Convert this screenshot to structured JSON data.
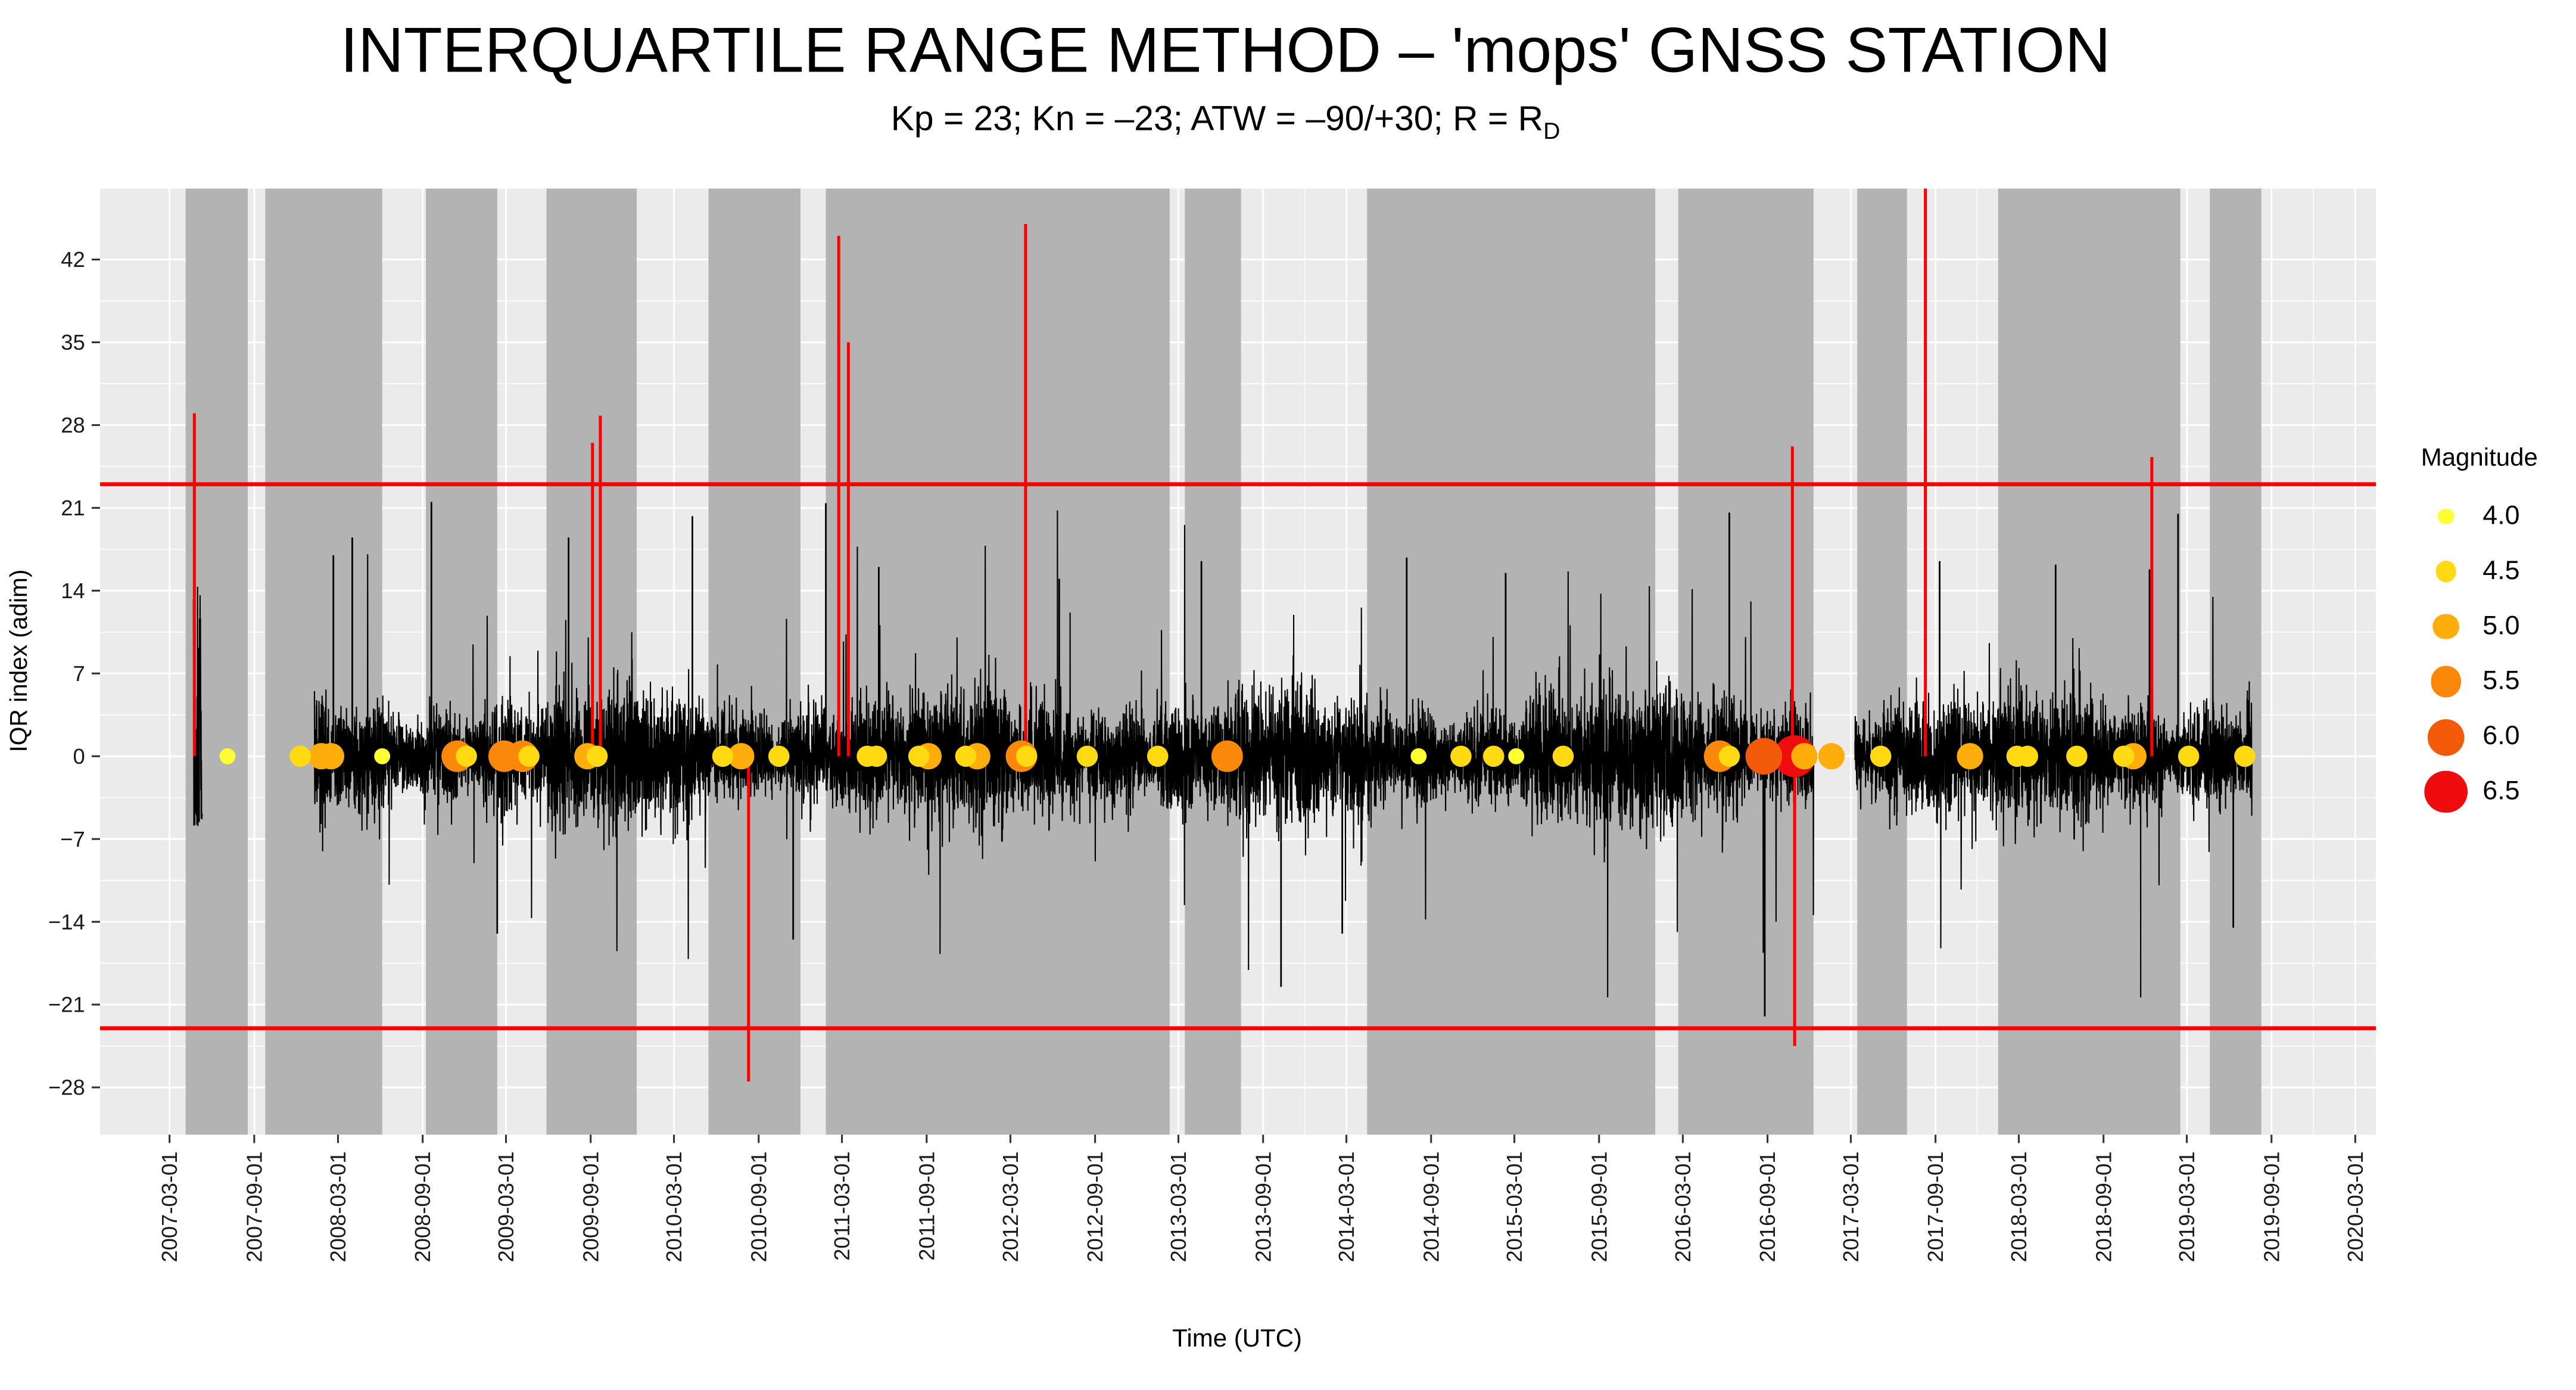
{
  "title": "INTERQUARTILE RANGE METHOD – 'mops' GNSS STATION",
  "subtitle": {
    "main": "Kp = 23; Kn = –23; ATW = –90/+30; R = R",
    "sub": "D"
  },
  "legend": {
    "title": "Magnitude"
  },
  "chart_data": {
    "type": "line",
    "title": "INTERQUARTILE RANGE METHOD – 'mops' GNSS STATION",
    "subtitle": "Kp = 23; Kn = –23; ATW = –90/+30; R = RD",
    "x_label": "Time (UTC)",
    "y_label": "IQR index (adim)",
    "x_domain": [
      "2006-10-01",
      "2020-04-15"
    ],
    "y_domain": [
      -32,
      48
    ],
    "y_ticks": [
      -28,
      -21,
      -14,
      -7,
      0,
      7,
      14,
      21,
      28,
      35,
      42
    ],
    "x_ticks": [
      "2007-03-01",
      "2007-09-01",
      "2008-03-01",
      "2008-09-01",
      "2009-03-01",
      "2009-09-01",
      "2010-03-01",
      "2010-09-01",
      "2011-03-01",
      "2011-09-01",
      "2012-03-01",
      "2012-09-01",
      "2013-03-01",
      "2013-09-01",
      "2014-03-01",
      "2014-09-01",
      "2015-03-01",
      "2015-09-01",
      "2016-03-01",
      "2016-09-01",
      "2017-03-01",
      "2017-09-01",
      "2018-03-01",
      "2018-09-01",
      "2019-03-01",
      "2019-09-01",
      "2020-03-01"
    ],
    "thresholds": {
      "upper": 23,
      "lower": -23,
      "color": "#FF0000"
    },
    "colors": {
      "panel": "#EBEBEB",
      "band": "#B3B3B3",
      "grid": "#FFFFFF",
      "series": "#000000",
      "threshold": "#FF0000"
    },
    "gap_bands": [
      {
        "start": "2007-04-05",
        "end": "2007-08-18"
      },
      {
        "start": "2007-09-25",
        "end": "2008-06-05"
      },
      {
        "start": "2008-09-08",
        "end": "2009-02-10"
      },
      {
        "start": "2009-05-28",
        "end": "2009-12-10"
      },
      {
        "start": "2010-05-15",
        "end": "2010-12-01"
      },
      {
        "start": "2011-01-25",
        "end": "2013-02-10"
      },
      {
        "start": "2013-03-15",
        "end": "2013-07-15"
      },
      {
        "start": "2014-04-15",
        "end": "2016-01-01"
      },
      {
        "start": "2016-02-20",
        "end": "2016-12-10"
      },
      {
        "start": "2017-03-15",
        "end": "2017-07-01"
      },
      {
        "start": "2018-01-15",
        "end": "2019-02-15"
      },
      {
        "start": "2019-04-20",
        "end": "2019-08-10"
      }
    ],
    "noise_segments": [
      {
        "start": "2007-04-22",
        "end": "2007-05-10",
        "sd": 5.5,
        "clip_hi": 17.5,
        "clip_lo": -6
      },
      {
        "start": "2008-01-10",
        "end": "2016-12-10",
        "sd": 2.4
      },
      {
        "start": "2017-03-10",
        "end": "2019-07-20",
        "sd": 2.4
      }
    ],
    "black_extremes": [
      {
        "date": "2008-02-20",
        "y": 17
      },
      {
        "date": "2008-04-01",
        "y": 18.5
      },
      {
        "date": "2008-09-20",
        "y": 21.5
      },
      {
        "date": "2009-02-10",
        "y": -15
      },
      {
        "date": "2009-07-15",
        "y": 18.5
      },
      {
        "date": "2010-04-10",
        "y": 20.3
      },
      {
        "date": "2010-11-15",
        "y": -15.5
      },
      {
        "date": "2011-01-25",
        "y": 21.4
      },
      {
        "date": "2011-05-20",
        "y": 16
      },
      {
        "date": "2012-06-15",
        "y": 15
      },
      {
        "date": "2013-04-20",
        "y": 16.5
      },
      {
        "date": "2013-10-10",
        "y": -19.5
      },
      {
        "date": "2014-02-20",
        "y": -15
      },
      {
        "date": "2014-07-10",
        "y": 16.8
      },
      {
        "date": "2015-02-10",
        "y": 15.5
      },
      {
        "date": "2016-06-10",
        "y": 20.6
      },
      {
        "date": "2016-08-26",
        "y": -22
      },
      {
        "date": "2017-09-10",
        "y": 16.5
      },
      {
        "date": "2018-05-20",
        "y": 16.2
      },
      {
        "date": "2018-12-10",
        "y": 15.8
      },
      {
        "date": "2019-02-10",
        "y": 20.5
      },
      {
        "date": "2019-06-10",
        "y": -14.5
      }
    ],
    "red_spikes": [
      {
        "date": "2007-04-24",
        "y": 29
      },
      {
        "date": "2009-09-05",
        "y": 26.5
      },
      {
        "date": "2009-09-22",
        "y": 28.8
      },
      {
        "date": "2010-08-10",
        "y": -27.5
      },
      {
        "date": "2011-02-22",
        "y": 44
      },
      {
        "date": "2011-03-15",
        "y": 35
      },
      {
        "date": "2012-04-03",
        "y": 45
      },
      {
        "date": "2016-10-25",
        "y": 26.2
      },
      {
        "date": "2016-10-30",
        "y": -24.5
      },
      {
        "date": "2017-08-10",
        "y": 56
      },
      {
        "date": "2018-12-15",
        "y": 25.3
      }
    ],
    "earthquakes": [
      {
        "date": "2007-07-05",
        "mag": 4.0
      },
      {
        "date": "2007-12-10",
        "mag": 4.5
      },
      {
        "date": "2008-01-25",
        "mag": 5.0
      },
      {
        "date": "2008-02-15",
        "mag": 5.0
      },
      {
        "date": "2008-06-05",
        "mag": 4.0
      },
      {
        "date": "2008-11-15",
        "mag": 5.5
      },
      {
        "date": "2008-12-05",
        "mag": 4.5
      },
      {
        "date": "2009-02-25",
        "mag": 5.5
      },
      {
        "date": "2009-04-06",
        "mag": 5.5
      },
      {
        "date": "2009-04-20",
        "mag": 4.5
      },
      {
        "date": "2009-08-25",
        "mag": 5.0
      },
      {
        "date": "2009-09-15",
        "mag": 4.5
      },
      {
        "date": "2010-06-15",
        "mag": 4.5
      },
      {
        "date": "2010-07-25",
        "mag": 5.0
      },
      {
        "date": "2010-10-15",
        "mag": 4.5
      },
      {
        "date": "2011-04-25",
        "mag": 4.5
      },
      {
        "date": "2011-05-15",
        "mag": 4.5
      },
      {
        "date": "2011-08-15",
        "mag": 4.5
      },
      {
        "date": "2011-09-05",
        "mag": 5.0
      },
      {
        "date": "2011-11-25",
        "mag": 4.5
      },
      {
        "date": "2011-12-20",
        "mag": 5.0
      },
      {
        "date": "2012-03-25",
        "mag": 5.5
      },
      {
        "date": "2012-04-05",
        "mag": 4.5
      },
      {
        "date": "2012-08-15",
        "mag": 4.5
      },
      {
        "date": "2013-01-15",
        "mag": 4.5
      },
      {
        "date": "2013-06-15",
        "mag": 5.5
      },
      {
        "date": "2014-08-05",
        "mag": 4.0
      },
      {
        "date": "2014-11-05",
        "mag": 4.5
      },
      {
        "date": "2015-01-15",
        "mag": 4.5
      },
      {
        "date": "2015-03-05",
        "mag": 4.0
      },
      {
        "date": "2015-06-15",
        "mag": 4.5
      },
      {
        "date": "2016-05-20",
        "mag": 5.5
      },
      {
        "date": "2016-06-10",
        "mag": 4.5
      },
      {
        "date": "2016-08-24",
        "mag": 6.0
      },
      {
        "date": "2016-10-30",
        "mag": 6.5
      },
      {
        "date": "2016-11-20",
        "mag": 5.0
      },
      {
        "date": "2017-01-18",
        "mag": 5.0
      },
      {
        "date": "2017-05-05",
        "mag": 4.5
      },
      {
        "date": "2017-11-15",
        "mag": 5.0
      },
      {
        "date": "2018-02-25",
        "mag": 4.5
      },
      {
        "date": "2018-03-20",
        "mag": 4.5
      },
      {
        "date": "2018-07-05",
        "mag": 4.5
      },
      {
        "date": "2018-10-15",
        "mag": 4.5
      },
      {
        "date": "2018-11-05",
        "mag": 5.0
      },
      {
        "date": "2019-03-05",
        "mag": 4.5
      },
      {
        "date": "2019-07-05",
        "mag": 4.5
      }
    ],
    "magnitude_scale": [
      {
        "mag": 4.0,
        "color": "#FFFF33"
      },
      {
        "mag": 4.5,
        "color": "#FFD912"
      },
      {
        "mag": 5.0,
        "color": "#FFAD0A"
      },
      {
        "mag": 5.5,
        "color": "#FB8809"
      },
      {
        "mag": 6.0,
        "color": "#F25A0A"
      },
      {
        "mag": 6.5,
        "color": "#EE0C0C"
      }
    ]
  }
}
